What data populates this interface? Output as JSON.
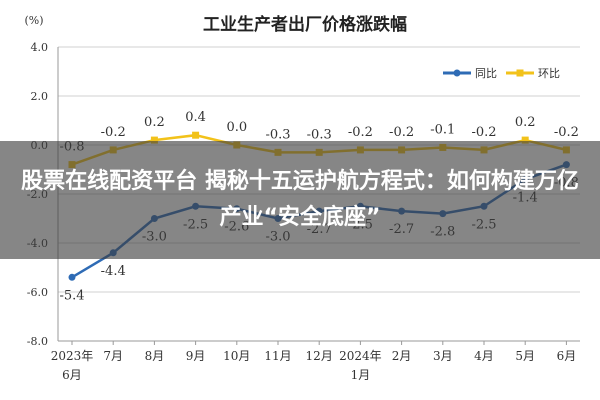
{
  "chart_data": {
    "type": "line",
    "title": "工业生产者出厂价格涨跌幅",
    "unit_label": "(%)",
    "categories": [
      "2023年6月",
      "7月",
      "8月",
      "9月",
      "10月",
      "11月",
      "12月",
      "2024年1月",
      "2月",
      "3月",
      "4月",
      "5月",
      "6月"
    ],
    "category_lines": [
      [
        "2023年",
        "6月"
      ],
      [
        "7月"
      ],
      [
        "8月"
      ],
      [
        "9月"
      ],
      [
        "10月"
      ],
      [
        "11月"
      ],
      [
        "12月"
      ],
      [
        "2024年",
        "1月"
      ],
      [
        "2月"
      ],
      [
        "3月"
      ],
      [
        "4月"
      ],
      [
        "5月"
      ],
      [
        "6月"
      ]
    ],
    "ylim": [
      -8.0,
      4.0
    ],
    "yticks": [
      "4.0",
      "2.0",
      "0.0",
      "-2.0",
      "-4.0",
      "-6.0",
      "-8.0"
    ],
    "ytick_values": [
      4,
      2,
      0,
      -2,
      -4,
      -6,
      -8
    ],
    "series": [
      {
        "name": "同比",
        "color": "#2e6bb5",
        "values": [
          -5.4,
          -4.4,
          -3.0,
          -2.5,
          -2.6,
          -3.0,
          -2.7,
          -2.5,
          -2.7,
          -2.8,
          -2.5,
          -1.4,
          -0.8
        ],
        "labels": [
          "-5.4",
          "-4.4",
          "-3.0",
          "-2.5",
          "-2.6",
          "-3.0",
          "-2.7",
          "-2.5",
          "-2.7",
          "-2.8",
          "-2.5",
          "-1.4",
          "-0.8"
        ]
      },
      {
        "name": "环比",
        "color": "#f2c21a",
        "values": [
          -0.8,
          -0.2,
          0.2,
          0.4,
          0.0,
          -0.3,
          -0.3,
          -0.2,
          -0.2,
          -0.1,
          -0.2,
          0.2,
          -0.2
        ],
        "labels": [
          "-0.8",
          "-0.2",
          "0.2",
          "0.4",
          "0.0",
          "-0.3",
          "-0.3",
          "-0.2",
          "-0.2",
          "-0.1",
          "-0.2",
          "0.2",
          "-0.2"
        ]
      }
    ],
    "legend_position": "top-right",
    "grid": true,
    "colors": {
      "grid": "#d0d0d0",
      "axis": "#999999",
      "text": "#333333"
    }
  },
  "overlay": {
    "headline": "股票在线配资平台 揭秘十五运护航方程式：如何构建万亿产业“安全底座”"
  }
}
